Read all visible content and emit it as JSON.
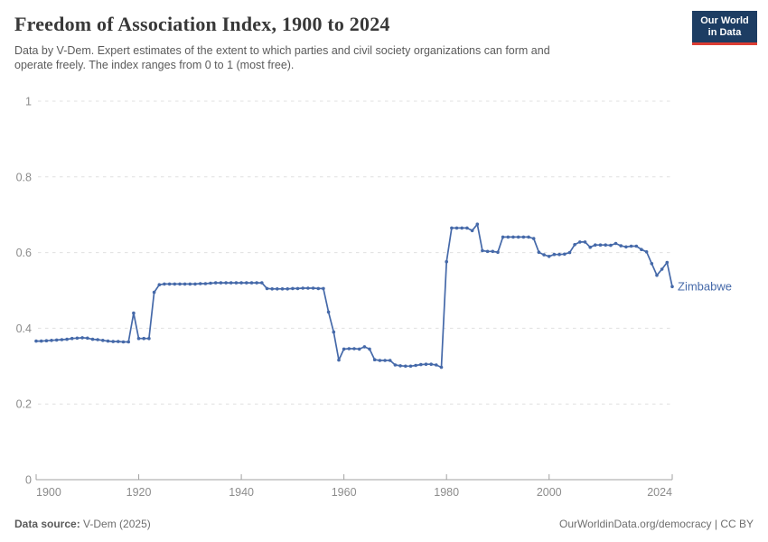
{
  "header": {
    "title": "Freedom of Association Index, 1900 to 2024",
    "subtitle_line1": "Data by V-Dem. Expert estimates of the extent to which parties and civil society organizations can form and",
    "subtitle_line2": "operate freely. The index ranges from 0 to 1 (most free).",
    "logo": {
      "line1": "Our World",
      "line2": "in Data",
      "bg_color": "#1d3d63",
      "accent_color": "#dc3d33"
    }
  },
  "chart_data": {
    "type": "line",
    "title": "Freedom of Association Index, 1900 to 2024",
    "entity_label": "Zimbabwe",
    "xlim": [
      1900,
      2024
    ],
    "ylim": [
      0,
      1
    ],
    "x_step": 1,
    "x_ticks": [
      1900,
      1920,
      1940,
      1960,
      1980,
      2000,
      2024
    ],
    "y_ticks": [
      0,
      0.2,
      0.4,
      0.6,
      0.8,
      1
    ],
    "grid": "horizontal-dashed",
    "legend_position": "end-of-line-label",
    "line_color": "#4569a9",
    "tick_color": "#8c8c8c",
    "grid_color": "#e0e0e0",
    "axis_color": "#a1a1a1",
    "series": [
      {
        "name": "Zimbabwe",
        "color": "#4569a9",
        "x_start": 1900,
        "values": [
          0.366,
          0.366,
          0.367,
          0.368,
          0.369,
          0.37,
          0.371,
          0.373,
          0.374,
          0.375,
          0.374,
          0.371,
          0.37,
          0.368,
          0.366,
          0.365,
          0.365,
          0.364,
          0.364,
          0.44,
          0.373,
          0.373,
          0.373,
          0.495,
          0.515,
          0.517,
          0.517,
          0.517,
          0.517,
          0.517,
          0.517,
          0.517,
          0.518,
          0.518,
          0.519,
          0.52,
          0.52,
          0.52,
          0.52,
          0.52,
          0.52,
          0.52,
          0.52,
          0.52,
          0.52,
          0.505,
          0.504,
          0.504,
          0.504,
          0.504,
          0.505,
          0.505,
          0.506,
          0.506,
          0.506,
          0.505,
          0.505,
          0.443,
          0.39,
          0.316,
          0.345,
          0.346,
          0.346,
          0.345,
          0.351,
          0.345,
          0.317,
          0.315,
          0.315,
          0.315,
          0.303,
          0.301,
          0.3,
          0.3,
          0.302,
          0.304,
          0.305,
          0.305,
          0.303,
          0.297,
          0.576,
          0.665,
          0.665,
          0.665,
          0.665,
          0.658,
          0.675,
          0.605,
          0.603,
          0.603,
          0.601,
          0.641,
          0.641,
          0.641,
          0.641,
          0.641,
          0.641,
          0.637,
          0.601,
          0.594,
          0.59,
          0.595,
          0.595,
          0.596,
          0.6,
          0.621,
          0.628,
          0.628,
          0.614,
          0.62,
          0.62,
          0.62,
          0.619,
          0.624,
          0.618,
          0.615,
          0.617,
          0.617,
          0.608,
          0.602,
          0.571,
          0.54,
          0.556,
          0.574,
          0.51
        ]
      }
    ]
  },
  "footer": {
    "datasource_label": "Data source:",
    "datasource_value": "V-Dem (2025)",
    "link": "OurWorldinData.org/democracy | CC BY"
  }
}
